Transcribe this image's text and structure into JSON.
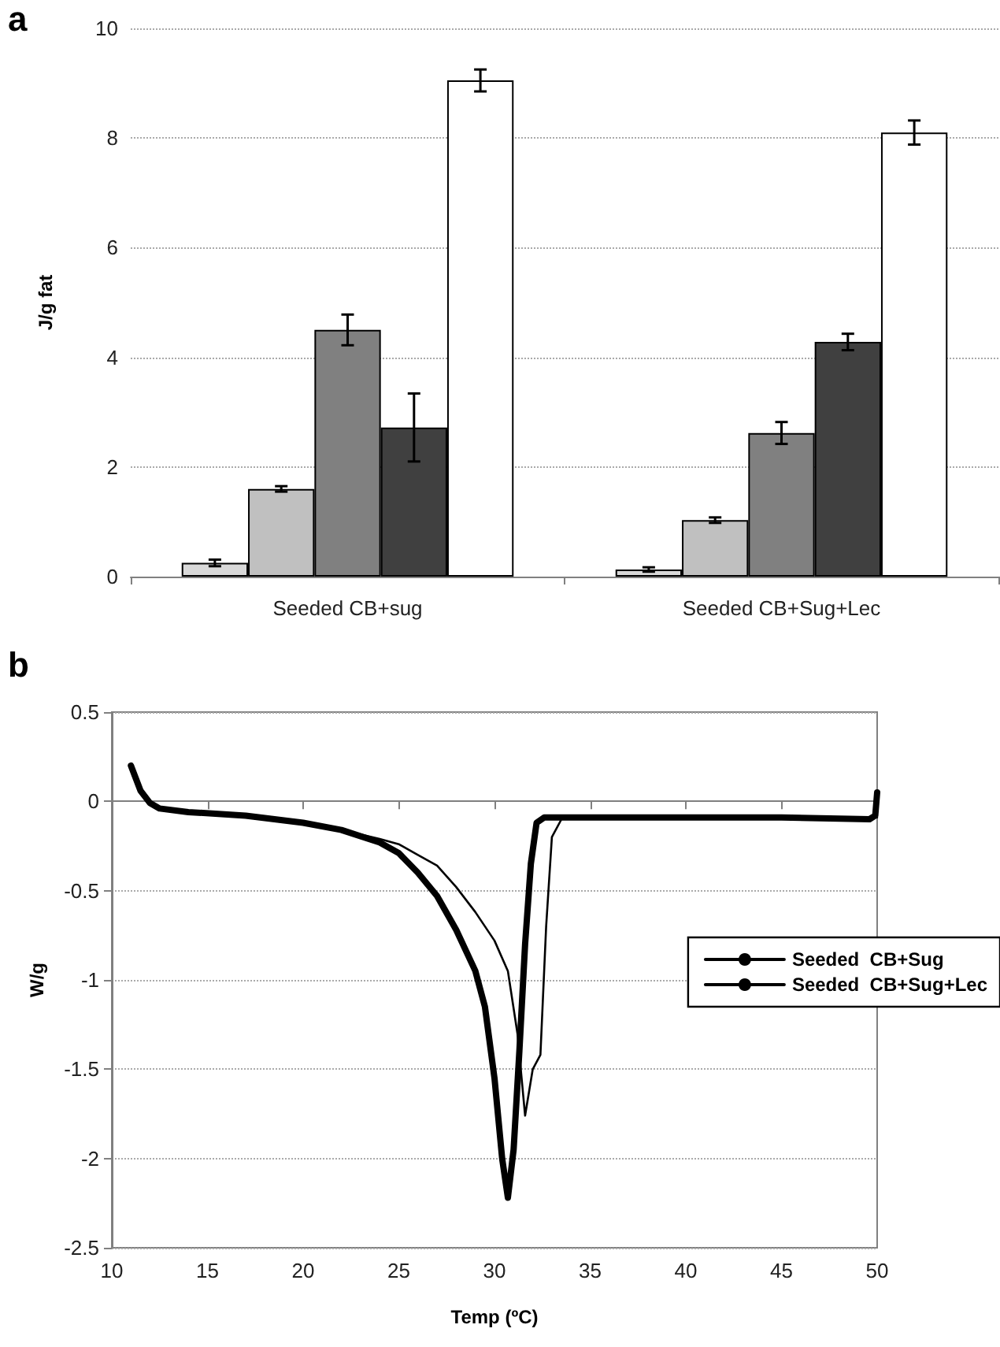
{
  "chart_data": [
    {
      "type": "bar",
      "title": "a",
      "ylabel": "J/g fat",
      "categories": [
        "Seeded CB+sug",
        "Seeded CB+Sug+Lec"
      ],
      "series": [
        {
          "color": "#d9d9d9",
          "values": [
            0.25,
            0.13
          ],
          "errors": [
            0.06,
            0.04
          ]
        },
        {
          "color": "#c0c0c0",
          "values": [
            1.6,
            1.03
          ],
          "errors": [
            0.05,
            0.05
          ]
        },
        {
          "color": "#808080",
          "values": [
            4.5,
            2.62
          ],
          "errors": [
            0.28,
            0.2
          ]
        },
        {
          "color": "#404040",
          "values": [
            2.72,
            4.28
          ],
          "errors": [
            0.62,
            0.15
          ]
        },
        {
          "color": "#ffffff",
          "values": [
            9.05,
            8.1
          ],
          "errors": [
            0.2,
            0.22
          ]
        }
      ],
      "ylim": [
        0,
        10
      ],
      "yticks": [
        0,
        2,
        4,
        6,
        8,
        10
      ],
      "grid": "y",
      "legend": false
    },
    {
      "type": "line",
      "title": "b",
      "xlabel": "Temp (ºC)",
      "ylabel": "W/g",
      "series": [
        {
          "name": "Seeded  CB+Sug",
          "color": "#000000",
          "x": [
            11,
            11.5,
            12,
            12.5,
            14,
            17,
            20,
            22,
            24,
            25,
            26,
            27,
            28,
            29,
            29.5,
            30,
            30.4,
            30.7,
            31,
            31.3,
            31.6,
            31.9,
            32.2,
            32.6,
            35,
            40,
            45,
            49.6,
            49.9,
            50
          ],
          "values": [
            0.2,
            0.06,
            -0.01,
            -0.04,
            -0.06,
            -0.08,
            -0.12,
            -0.16,
            -0.23,
            -0.29,
            -0.4,
            -0.53,
            -0.72,
            -0.95,
            -1.15,
            -1.55,
            -2.0,
            -2.22,
            -1.95,
            -1.4,
            -0.8,
            -0.35,
            -0.12,
            -0.09,
            -0.09,
            -0.09,
            -0.09,
            -0.1,
            -0.08,
            0.05
          ]
        },
        {
          "name": "Seeded  CB+Sug+Lec",
          "color": "#000000",
          "x": [
            11,
            11.5,
            12,
            12.5,
            14,
            17,
            20,
            22,
            24,
            25,
            26,
            27,
            28,
            29,
            30,
            30.7,
            31.2,
            31.6,
            32,
            32.4,
            32.7,
            33,
            33.5,
            34,
            40,
            45,
            50
          ],
          "values": [
            0.2,
            0.06,
            -0.01,
            -0.04,
            -0.06,
            -0.08,
            -0.12,
            -0.16,
            -0.21,
            -0.24,
            -0.3,
            -0.36,
            -0.48,
            -0.62,
            -0.78,
            -0.95,
            -1.3,
            -1.76,
            -1.5,
            -1.42,
            -0.7,
            -0.2,
            -0.1,
            -0.09,
            -0.09,
            -0.09,
            -0.09
          ]
        }
      ],
      "xlim": [
        10,
        50
      ],
      "xticks": [
        10,
        15,
        20,
        25,
        30,
        35,
        40,
        45,
        50
      ],
      "ylim": [
        -2.5,
        0.5
      ],
      "yticks": [
        -2.5,
        -2,
        -1.5,
        -1,
        -0.5,
        0,
        0.5
      ],
      "grid": "y",
      "legend": "right",
      "marker": "none"
    }
  ]
}
